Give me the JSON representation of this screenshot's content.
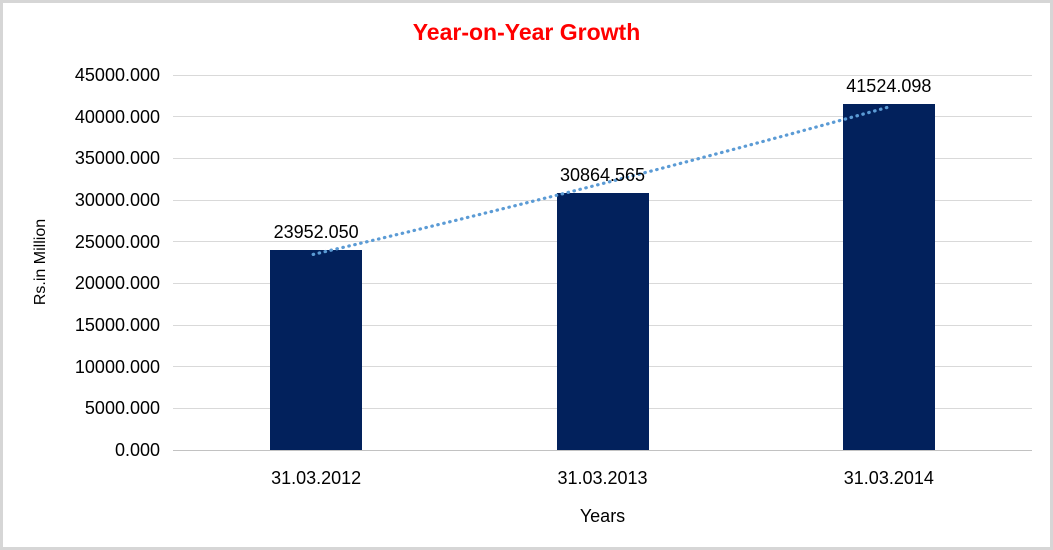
{
  "chart_data": {
    "type": "bar",
    "title": "Year-on-Year Growth",
    "xlabel": "Years",
    "ylabel": "Rs.in Million",
    "categories": [
      "31.03.2012",
      "31.03.2013",
      "31.03.2014"
    ],
    "values": [
      23952.05,
      30864.565,
      41524.098
    ],
    "value_labels": [
      "23952.050",
      "30864.565",
      "41524.098"
    ],
    "ylim": [
      0,
      45000
    ],
    "ytick_step": 5000,
    "ytick_labels": [
      "0.000",
      "5000.000",
      "10000.000",
      "15000.000",
      "20000.000",
      "25000.000",
      "30000.000",
      "35000.000",
      "40000.000",
      "45000.000"
    ],
    "grid": "horizontal",
    "legend_position": "none",
    "trendline": {
      "style": "dotted",
      "points": "bar-tops"
    },
    "colors": {
      "bar_fill": "#02215C",
      "trendline": "#5B9BD5",
      "title_text": "#FF0000",
      "axis_text": "#000000",
      "gridline": "#D9D9D9",
      "frame_border": "#D6D6D6",
      "background": "#FFFFFF"
    }
  }
}
